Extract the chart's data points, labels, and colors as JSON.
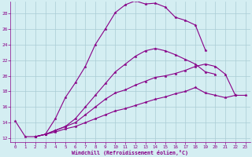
{
  "xlabel": "Windchill (Refroidissement éolien,°C)",
  "background_color": "#d4eef2",
  "grid_color": "#aaccd4",
  "line_color": "#880088",
  "axis_color": "#555555",
  "xlim": [
    -0.5,
    23.5
  ],
  "ylim": [
    11.5,
    29.5
  ],
  "xticks": [
    0,
    1,
    2,
    3,
    4,
    5,
    6,
    7,
    8,
    9,
    10,
    11,
    12,
    13,
    14,
    15,
    16,
    17,
    18,
    19,
    20,
    21,
    22,
    23
  ],
  "yticks": [
    12,
    14,
    16,
    18,
    20,
    22,
    24,
    26,
    28
  ],
  "curves": [
    {
      "x": [
        0,
        1,
        2,
        3,
        4,
        5,
        6,
        7,
        8,
        9,
        10,
        11,
        12,
        13,
        14,
        15,
        16,
        17,
        18,
        19
      ],
      "y": [
        14.2,
        12.2,
        12.2,
        12.5,
        14.5,
        17.2,
        19.1,
        21.2,
        24.0,
        26.0,
        28.1,
        29.1,
        29.6,
        29.2,
        29.3,
        28.8,
        27.5,
        27.1,
        26.5,
        23.3
      ]
    },
    {
      "x": [
        2,
        3,
        4,
        5,
        6,
        7,
        8,
        9,
        10,
        11,
        12,
        13,
        14,
        15,
        16,
        17,
        18,
        19,
        20
      ],
      "y": [
        12.2,
        12.5,
        13.0,
        13.5,
        14.5,
        16.0,
        17.5,
        19.0,
        20.5,
        21.5,
        22.5,
        23.2,
        23.5,
        23.2,
        22.7,
        22.1,
        21.5,
        20.5,
        20.2
      ]
    },
    {
      "x": [
        2,
        3,
        4,
        5,
        6,
        7,
        8,
        9,
        10,
        11,
        12,
        13,
        14,
        15,
        16,
        17,
        18,
        19,
        20,
        21,
        22
      ],
      "y": [
        12.2,
        12.5,
        13.0,
        13.5,
        14.0,
        15.0,
        16.0,
        17.0,
        17.8,
        18.2,
        18.8,
        19.3,
        19.8,
        20.0,
        20.3,
        20.7,
        21.2,
        21.5,
        21.2,
        20.2,
        17.5
      ]
    },
    {
      "x": [
        2,
        3,
        4,
        5,
        6,
        7,
        8,
        9,
        10,
        11,
        12,
        13,
        14,
        15,
        16,
        17,
        18,
        19,
        20,
        21,
        22,
        23
      ],
      "y": [
        12.2,
        12.5,
        12.8,
        13.2,
        13.5,
        14.0,
        14.5,
        15.0,
        15.5,
        15.8,
        16.2,
        16.6,
        17.0,
        17.3,
        17.7,
        18.0,
        18.5,
        17.8,
        17.5,
        17.2,
        17.5,
        17.5
      ]
    }
  ]
}
